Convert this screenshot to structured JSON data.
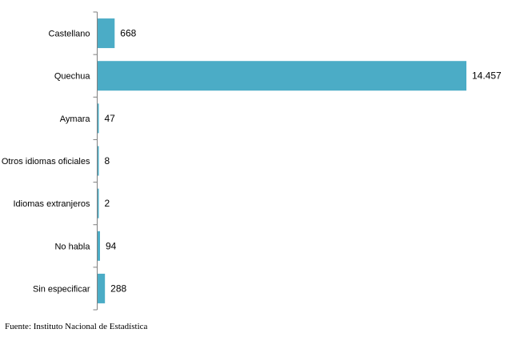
{
  "chart_data": {
    "type": "bar",
    "orientation": "horizontal",
    "categories": [
      "Castellano",
      "Quechua",
      "Aymara",
      "Otros idiomas oficiales",
      "Idiomas extranjeros",
      "No habla",
      "Sin especificar"
    ],
    "values": [
      668,
      14457,
      47,
      8,
      2,
      94,
      288
    ],
    "value_labels": [
      "668",
      "14.457",
      "47",
      "8",
      "2",
      "94",
      "288"
    ],
    "title": "",
    "xlabel": "",
    "ylabel": "",
    "xlim": [
      0,
      14457
    ],
    "grid": false,
    "legend": "none",
    "bar_color": "#4BACC6"
  },
  "footer": {
    "source": "Fuente: Instituto Nacional de Estadística"
  }
}
